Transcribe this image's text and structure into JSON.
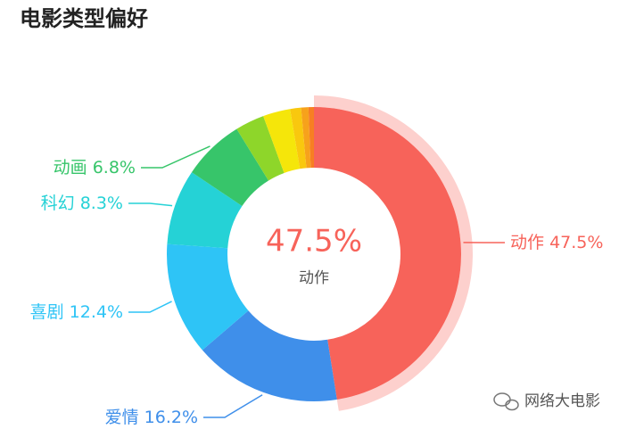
{
  "chart_data": {
    "type": "donut",
    "title": "电影类型偏好",
    "categories": [
      "动作",
      "爱情",
      "喜剧",
      "科幻",
      "动画",
      null,
      null,
      null,
      null,
      null
    ],
    "values": [
      47.5,
      16.2,
      12.4,
      8.3,
      6.8,
      3.2,
      3.0,
      1.2,
      0.8,
      0.6
    ],
    "value_labels": [
      "47.5%",
      "16.2%",
      "12.4%",
      "8.3%",
      "6.8%",
      null,
      null,
      null,
      null,
      null
    ],
    "colors": [
      "#f7635a",
      "#3f8fea",
      "#2ec4f6",
      "#25d2d6",
      "#37c56a",
      "#8ed62a",
      "#f5e60a",
      "#f9c80e",
      "#f7a21b",
      "#f77f22"
    ],
    "highlight": 0
  },
  "watermark": "网络大电影"
}
